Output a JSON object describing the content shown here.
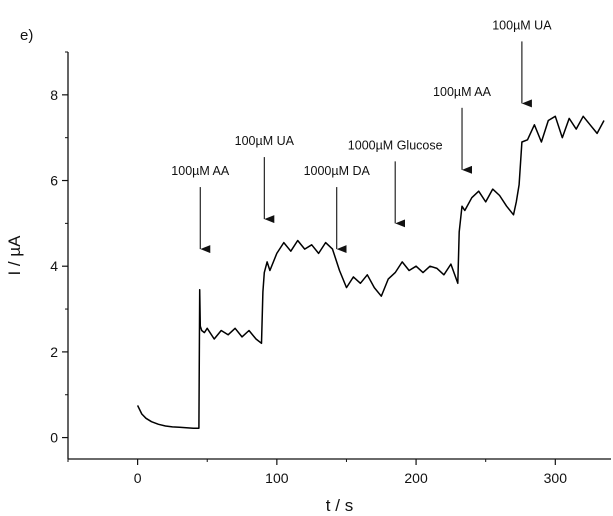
{
  "panel_label": "e)",
  "chart_data": {
    "type": "line",
    "xlabel": "t / s",
    "ylabel": "I / µA",
    "xlim": [
      -50,
      340
    ],
    "ylim": [
      -0.5,
      9
    ],
    "xticks": [
      0,
      100,
      200,
      300
    ],
    "yticks": [
      0,
      2,
      4,
      6,
      8
    ],
    "grid": false,
    "series": [
      {
        "color": "#000000",
        "x": [
          0,
          3,
          6,
          10,
          15,
          20,
          25,
          30,
          35,
          40,
          44,
          44.6,
          45,
          46,
          48,
          50,
          55,
          60,
          65,
          70,
          75,
          80,
          85,
          89,
          90,
          91,
          93,
          95,
          100,
          105,
          110,
          115,
          120,
          125,
          130,
          135,
          140,
          145,
          150,
          155,
          160,
          165,
          170,
          175,
          180,
          185,
          190,
          195,
          200,
          205,
          210,
          215,
          220,
          225,
          230,
          231,
          233,
          235,
          240,
          245,
          250,
          255,
          260,
          265,
          270,
          272,
          274,
          276,
          280,
          285,
          290,
          295,
          300,
          305,
          310,
          315,
          320,
          325,
          330,
          335
        ],
        "y": [
          0.75,
          0.55,
          0.45,
          0.37,
          0.31,
          0.27,
          0.25,
          0.24,
          0.23,
          0.22,
          0.22,
          3.45,
          2.6,
          2.5,
          2.45,
          2.55,
          2.3,
          2.5,
          2.4,
          2.55,
          2.35,
          2.5,
          2.3,
          2.2,
          3.4,
          3.85,
          4.1,
          3.9,
          4.3,
          4.55,
          4.35,
          4.6,
          4.4,
          4.5,
          4.3,
          4.55,
          4.4,
          3.9,
          3.5,
          3.75,
          3.6,
          3.8,
          3.5,
          3.3,
          3.7,
          3.85,
          4.1,
          3.9,
          4.0,
          3.85,
          4.0,
          3.95,
          3.8,
          4.05,
          3.6,
          4.8,
          5.4,
          5.3,
          5.6,
          5.75,
          5.5,
          5.8,
          5.65,
          5.4,
          5.2,
          5.5,
          5.9,
          6.9,
          6.95,
          7.3,
          6.9,
          7.4,
          7.5,
          7.0,
          7.45,
          7.2,
          7.5,
          7.3,
          7.1,
          7.4
        ]
      }
    ],
    "annotations": [
      {
        "text": "100µM AA",
        "x": 45,
        "y": 4.4
      },
      {
        "text": "100µM UA",
        "x": 91,
        "y": 5.1
      },
      {
        "text": "1000µM DA",
        "x": 143,
        "y": 4.4
      },
      {
        "text": "1000µM Glucose",
        "x": 185,
        "y": 5.0
      },
      {
        "text": "100µM AA",
        "x": 233,
        "y": 6.25
      },
      {
        "text": "100µM UA",
        "x": 276,
        "y": 7.8
      }
    ]
  }
}
